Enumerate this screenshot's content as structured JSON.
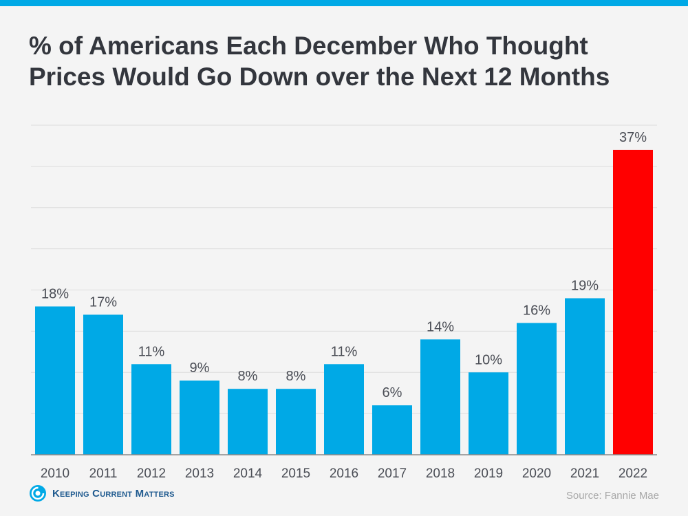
{
  "header": {
    "title": "% of Americans Each December Who Thought Prices Would Go Down over the Next 12 Months"
  },
  "footer": {
    "brand": "Keeping Current Matters",
    "source": "Source: Fannie Mae"
  },
  "colors": {
    "accent": "#00a9e6",
    "highlight": "#ff0000",
    "title": "#33363d"
  },
  "chart_data": {
    "type": "bar",
    "title": "% of Americans Each December Who Thought Prices Would Go Down over the Next 12 Months",
    "categories": [
      "2010",
      "2011",
      "2012",
      "2013",
      "2014",
      "2015",
      "2016",
      "2017",
      "2018",
      "2019",
      "2020",
      "2021",
      "2022"
    ],
    "values": [
      18,
      17,
      11,
      9,
      8,
      8,
      11,
      6,
      14,
      10,
      16,
      19,
      37
    ],
    "labels": [
      "18%",
      "17%",
      "11%",
      "9%",
      "8%",
      "8%",
      "11%",
      "6%",
      "14%",
      "10%",
      "16%",
      "19%",
      "37%"
    ],
    "highlight_category": "2022",
    "xlabel": "",
    "ylabel": "",
    "ylim": [
      0,
      40
    ],
    "grid": true,
    "legend": "none"
  }
}
